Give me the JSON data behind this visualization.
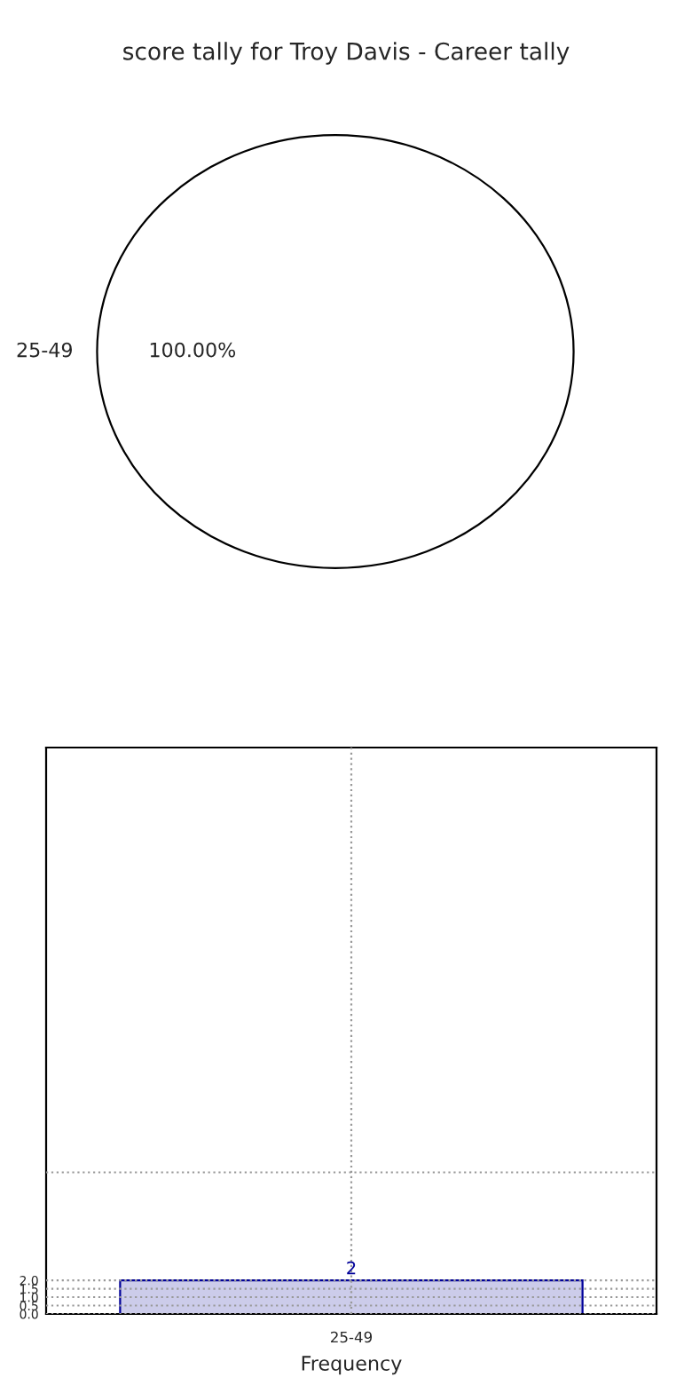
{
  "chart_data": [
    {
      "type": "pie",
      "title": "score tally for Troy Davis - Career tally",
      "categories": [
        "25-49"
      ],
      "values": [
        100
      ],
      "colors": [
        "#ffffff"
      ],
      "value_labels": [
        "100.00%"
      ]
    },
    {
      "type": "bar",
      "xlabel": "Frequency",
      "categories": [
        "25-49"
      ],
      "values": [
        2
      ],
      "color": "#ccccea",
      "ylim": [
        0,
        33.6
      ],
      "yticks": [
        {
          "value": 0,
          "label": "0.0"
        },
        0.5,
        {
          "value": 1,
          "label": "1.0"
        },
        1.5,
        {
          "value": 2,
          "label": "2.0"
        },
        {
          "value": 8.4,
          "label": null
        }
      ],
      "grid": true,
      "data_labels": true
    }
  ]
}
